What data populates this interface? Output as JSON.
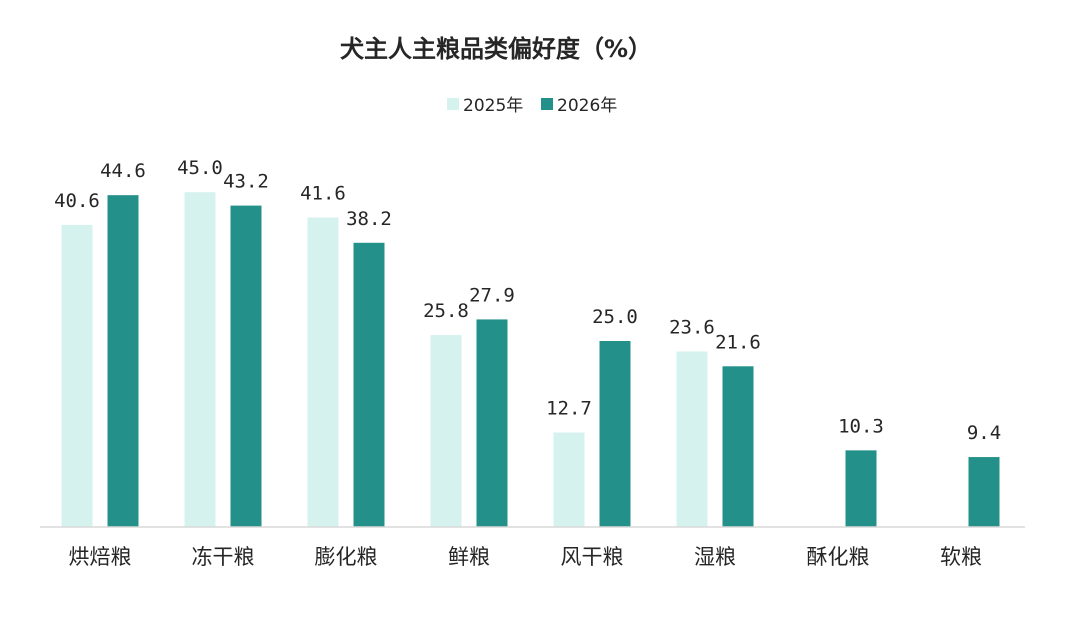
{
  "chart_data": {
    "type": "bar",
    "title": "犬主人主粮品类偏好度（%）",
    "categories": [
      "烘焙粮",
      "冻干粮",
      "膨化粮",
      "鲜粮",
      "风干粮",
      "湿粮",
      "酥化粮",
      "软粮"
    ],
    "series": [
      {
        "name": "2025年",
        "color": "#d6f2ef",
        "values": [
          40.6,
          45.0,
          41.6,
          25.8,
          12.7,
          23.6,
          null,
          null
        ],
        "labels": [
          "40.6",
          "45.0",
          "41.6",
          "25.8",
          "12.7",
          "23.6",
          "",
          ""
        ]
      },
      {
        "name": "2026年",
        "color": "#24908a",
        "values": [
          44.6,
          43.2,
          38.2,
          27.9,
          25.0,
          21.6,
          10.3,
          9.4
        ],
        "labels": [
          "44.6",
          "43.2",
          "38.2",
          "27.9",
          "25.0",
          "21.6",
          "10.3",
          "9.4"
        ]
      }
    ],
    "xlabel": "",
    "ylabel": "",
    "ylim": [
      0,
      50
    ],
    "grid": false,
    "legend_position": "top-center",
    "data_labels": true
  }
}
